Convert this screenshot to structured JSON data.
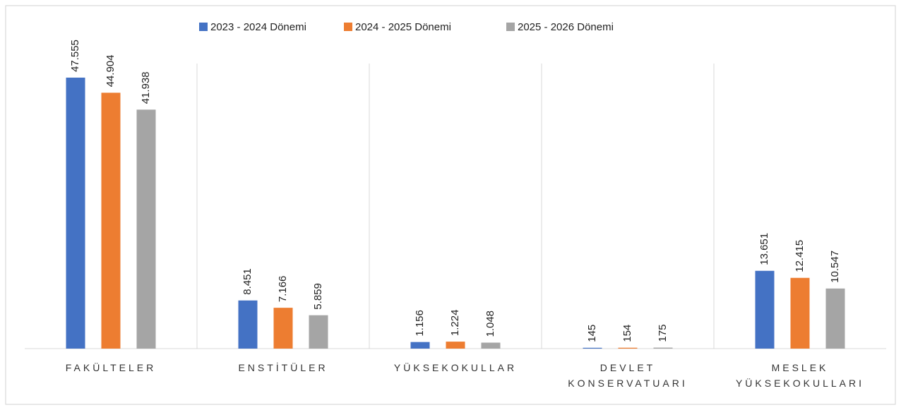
{
  "chart_data": {
    "type": "bar",
    "categories": [
      "FAKÜLTELER",
      "ENSTİTÜLER",
      "YÜKSEKOKULLAR",
      "DEVLET KONSERVATUARI",
      "MESLEK YÜKSEKOKULLARI"
    ],
    "series": [
      {
        "name": "2023 - 2024 Dönemi",
        "color": "#4472c4",
        "values": [
          47555,
          8451,
          1156,
          145,
          13651
        ],
        "value_labels": [
          "47.555",
          "8.451",
          "1.156",
          "145",
          "13.651"
        ]
      },
      {
        "name": "2024 - 2025 Dönemi",
        "color": "#ed7d31",
        "values": [
          44904,
          7166,
          1224,
          154,
          12415
        ],
        "value_labels": [
          "44.904",
          "7.166",
          "1.224",
          "154",
          "12.415"
        ]
      },
      {
        "name": "2025 - 2026 Dönemi",
        "color": "#a5a5a5",
        "values": [
          41938,
          5859,
          1048,
          175,
          10547
        ],
        "value_labels": [
          "41.938",
          "5.859",
          "1.048",
          "175",
          "10.547"
        ]
      }
    ],
    "legend": "top"
  }
}
